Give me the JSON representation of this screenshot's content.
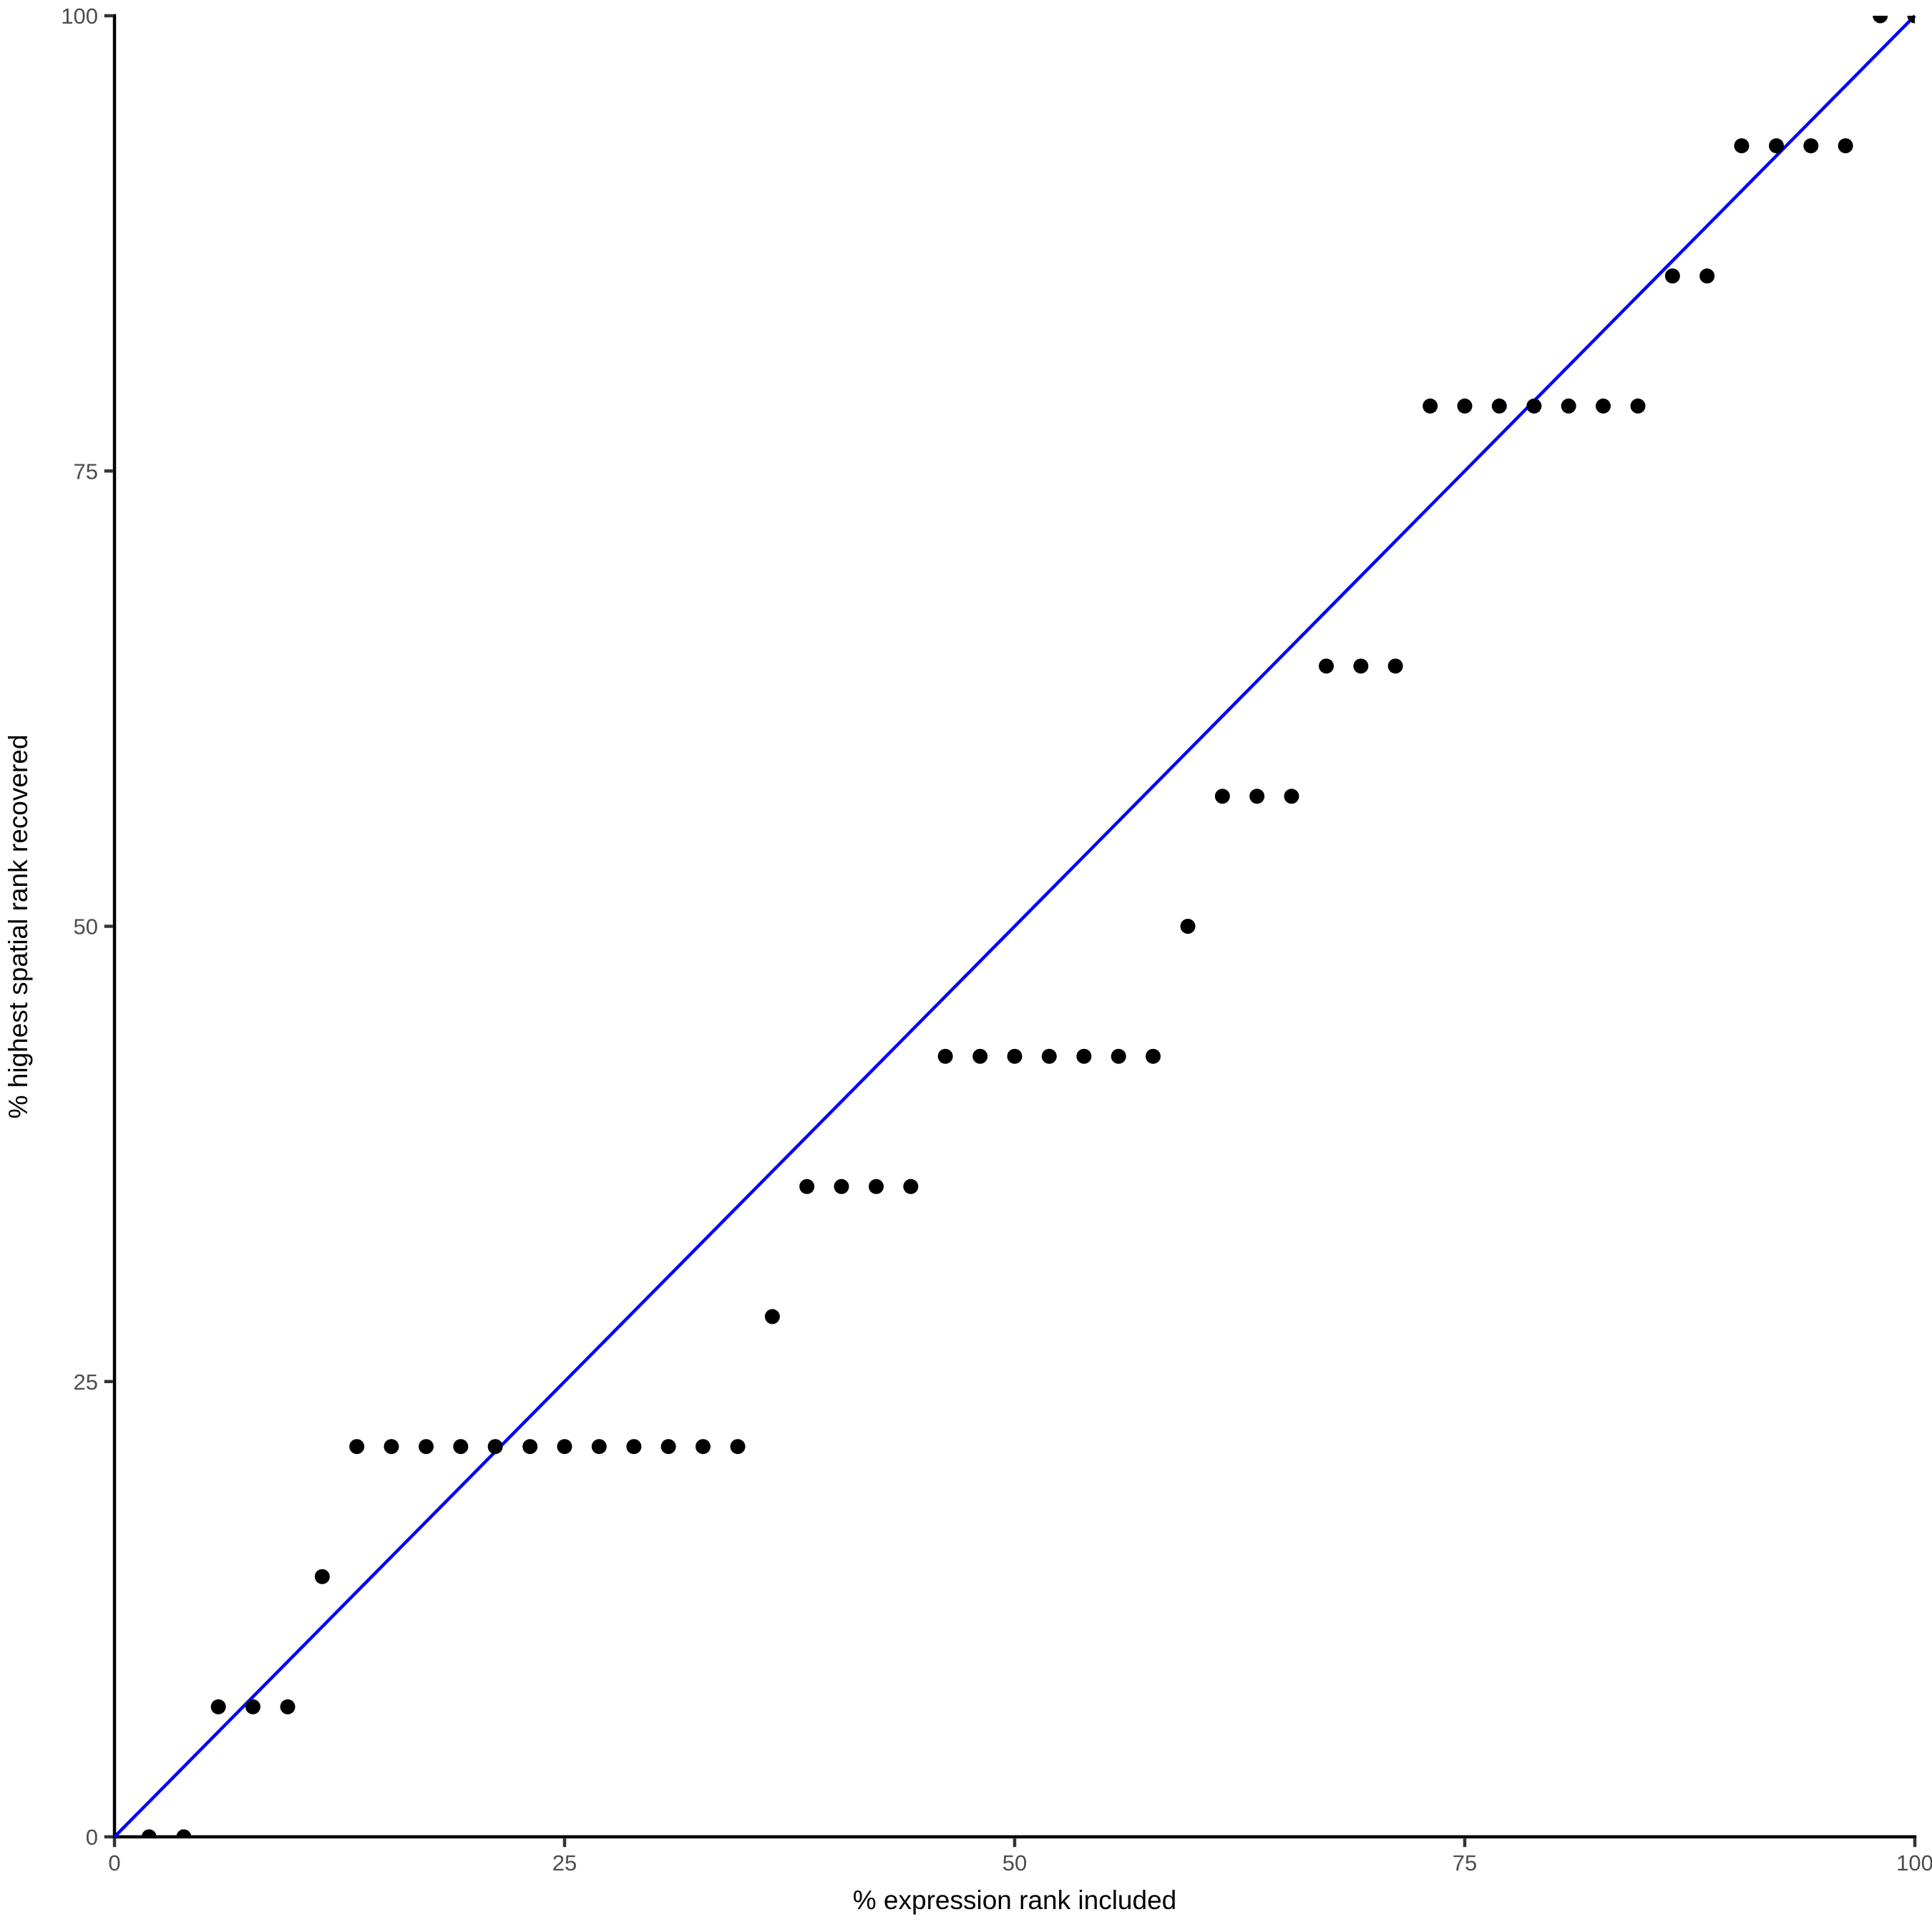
{
  "figure": {
    "background": "#ffffff"
  },
  "chart_data": {
    "type": "scatter",
    "title": "",
    "xlabel": "% expression rank included",
    "ylabel": "% highest spatial rank recovered",
    "xlim": [
      0,
      100
    ],
    "ylim": [
      0,
      100
    ],
    "x_ticks": [
      0,
      25,
      50,
      75,
      100
    ],
    "y_ticks": [
      0,
      25,
      50,
      75,
      100
    ],
    "grid": "off",
    "legend": "none",
    "point_color": "#000000",
    "axis_color": "#000000",
    "tick_color": "#333333",
    "tick_label_color": "#4d4d4d",
    "reference_line": {
      "name": "identity-line",
      "color": "#0000ff",
      "from": [
        0,
        0
      ],
      "to": [
        100,
        100
      ]
    },
    "points": [
      {
        "x": 1.92,
        "y": 0
      },
      {
        "x": 3.85,
        "y": 0
      },
      {
        "x": 5.77,
        "y": 7.14
      },
      {
        "x": 7.69,
        "y": 7.14
      },
      {
        "x": 9.62,
        "y": 7.14
      },
      {
        "x": 11.54,
        "y": 14.29
      },
      {
        "x": 13.46,
        "y": 21.43
      },
      {
        "x": 15.38,
        "y": 21.43
      },
      {
        "x": 17.31,
        "y": 21.43
      },
      {
        "x": 19.23,
        "y": 21.43
      },
      {
        "x": 21.15,
        "y": 21.43
      },
      {
        "x": 23.08,
        "y": 21.43
      },
      {
        "x": 25.0,
        "y": 21.43
      },
      {
        "x": 26.92,
        "y": 21.43
      },
      {
        "x": 28.85,
        "y": 21.43
      },
      {
        "x": 30.77,
        "y": 21.43
      },
      {
        "x": 32.69,
        "y": 21.43
      },
      {
        "x": 34.62,
        "y": 21.43
      },
      {
        "x": 36.54,
        "y": 28.57
      },
      {
        "x": 38.46,
        "y": 35.71
      },
      {
        "x": 40.38,
        "y": 35.71
      },
      {
        "x": 42.31,
        "y": 35.71
      },
      {
        "x": 44.23,
        "y": 35.71
      },
      {
        "x": 46.15,
        "y": 42.86
      },
      {
        "x": 48.08,
        "y": 42.86
      },
      {
        "x": 50.0,
        "y": 42.86
      },
      {
        "x": 51.92,
        "y": 42.86
      },
      {
        "x": 53.85,
        "y": 42.86
      },
      {
        "x": 55.77,
        "y": 42.86
      },
      {
        "x": 57.69,
        "y": 42.86
      },
      {
        "x": 59.62,
        "y": 50
      },
      {
        "x": 61.54,
        "y": 57.14
      },
      {
        "x": 63.46,
        "y": 57.14
      },
      {
        "x": 65.38,
        "y": 57.14
      },
      {
        "x": 67.31,
        "y": 64.29
      },
      {
        "x": 69.23,
        "y": 64.29
      },
      {
        "x": 71.15,
        "y": 64.29
      },
      {
        "x": 73.08,
        "y": 78.57
      },
      {
        "x": 75.0,
        "y": 78.57
      },
      {
        "x": 76.92,
        "y": 78.57
      },
      {
        "x": 78.85,
        "y": 78.57
      },
      {
        "x": 80.77,
        "y": 78.57
      },
      {
        "x": 82.69,
        "y": 78.57
      },
      {
        "x": 84.62,
        "y": 78.57
      },
      {
        "x": 86.54,
        "y": 85.71
      },
      {
        "x": 88.46,
        "y": 85.71
      },
      {
        "x": 90.38,
        "y": 92.86
      },
      {
        "x": 92.31,
        "y": 92.86
      },
      {
        "x": 94.23,
        "y": 92.86
      },
      {
        "x": 96.15,
        "y": 92.86
      },
      {
        "x": 98.08,
        "y": 100
      },
      {
        "x": 100.0,
        "y": 100
      }
    ]
  }
}
